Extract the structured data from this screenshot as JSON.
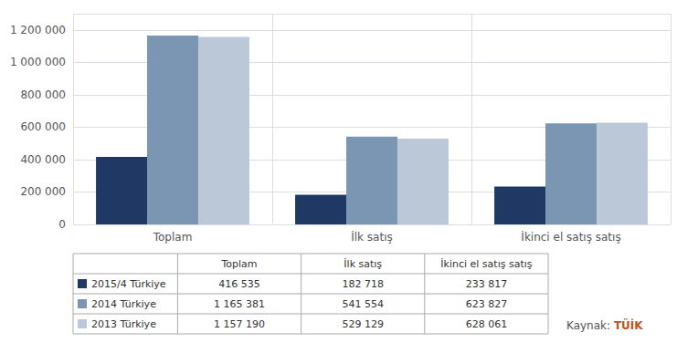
{
  "chart_data": {
    "type": "bar",
    "categories": [
      "Toplam",
      "İlk satış",
      "İkinci el satış satış"
    ],
    "series": [
      {
        "name": "2015/4 Türkiye",
        "color": "#1f3864",
        "values": [
          416535,
          182718,
          233817
        ],
        "value_labels": [
          "416 535",
          "182 718",
          "233 817"
        ]
      },
      {
        "name": "2014 Türkiye",
        "color": "#7b96b2",
        "values": [
          1165381,
          541554,
          623827
        ],
        "value_labels": [
          "1 165 381",
          "541 554",
          "623 827"
        ]
      },
      {
        "name": "2013 Türkiye",
        "color": "#bac8d8",
        "values": [
          1157190,
          529129,
          628061
        ],
        "value_labels": [
          "1 157 190",
          "529 129",
          "628 061"
        ]
      }
    ],
    "ylim": [
      0,
      1300000
    ],
    "yticks": [
      0,
      {
        "value": 200000,
        "label": "200 000"
      },
      {
        "value": 400000,
        "label": "400 000"
      },
      {
        "value": 600000,
        "label": "600 000"
      },
      {
        "value": 800000,
        "label": "800 000"
      },
      {
        "value": 1000000,
        "label": "1 000 000"
      },
      {
        "value": 1200000,
        "label": "1 200 000"
      }
    ],
    "grid": true,
    "legend": "bottom",
    "annotations": [
      {
        "text": "Kaynak: ",
        "color": "#555555"
      },
      {
        "text": "TÜİK",
        "color": "#c0531a"
      }
    ]
  }
}
